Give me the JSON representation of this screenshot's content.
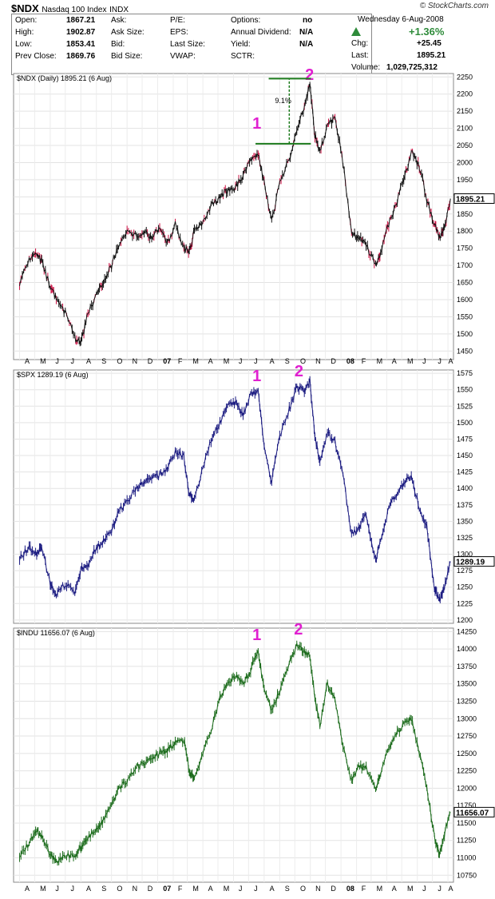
{
  "header": {
    "symbol": "$NDX",
    "name": "Nasdaq 100 Index",
    "exchange": "INDX",
    "brand": "© StockCharts.com",
    "date": "Wednesday  6-Aug-2008",
    "fields": [
      {
        "label": "Open:",
        "value": "1867.21"
      },
      {
        "label": "High:",
        "value": "1902.87"
      },
      {
        "label": "Low:",
        "value": "1853.41"
      },
      {
        "label": "Prev Close:",
        "value": "1869.76"
      }
    ],
    "fields2": [
      {
        "label": "Ask:",
        "value": ""
      },
      {
        "label": "Ask Size:",
        "value": ""
      },
      {
        "label": "Bid:",
        "value": ""
      },
      {
        "label": "Bid Size:",
        "value": ""
      }
    ],
    "fields3": [
      {
        "label": "P/E:",
        "value": ""
      },
      {
        "label": "EPS:",
        "value": ""
      },
      {
        "label": "Last Size:",
        "value": ""
      },
      {
        "label": "VWAP:",
        "value": ""
      }
    ],
    "fields4": [
      {
        "label": "Options:",
        "value": "no"
      },
      {
        "label": "Annual Dividend:",
        "value": "N/A"
      },
      {
        "label": "Yield:",
        "value": "N/A"
      },
      {
        "label": "SCTR:",
        "value": ""
      }
    ],
    "pct_change": "+1.36%",
    "chg_label": "Chg:",
    "chg": "+25.45",
    "last_label": "Last:",
    "last": "1895.21",
    "volume_label": "Volume:",
    "volume": "1,029,725,312"
  },
  "chart_data": [
    {
      "type": "line",
      "title": "$NDX (Daily) 1895.21 (6 Aug)",
      "color": "#111111",
      "down_color": "#cc1144",
      "ylim": [
        1425,
        2260
      ],
      "yticks": [
        1450,
        1500,
        1550,
        1600,
        1650,
        1700,
        1750,
        1800,
        1850,
        1900,
        1950,
        2000,
        2050,
        2100,
        2150,
        2200,
        2250
      ],
      "last_value": "1895.21",
      "x": [
        "2006-04-01",
        "2006-04-20",
        "2006-05-05",
        "2006-05-15",
        "2006-06-01",
        "2006-06-13",
        "2006-07-01",
        "2006-07-20",
        "2006-08-01",
        "2006-08-15",
        "2006-09-01",
        "2006-09-15",
        "2006-10-01",
        "2006-10-15",
        "2006-11-01",
        "2006-11-20",
        "2006-12-05",
        "2006-12-20",
        "2007-01-05",
        "2007-01-20",
        "2007-02-05",
        "2007-02-22",
        "2007-03-05",
        "2007-03-15",
        "2007-04-01",
        "2007-04-20",
        "2007-05-05",
        "2007-05-20",
        "2007-06-05",
        "2007-06-20",
        "2007-07-05",
        "2007-07-20",
        "2007-08-01",
        "2007-08-16",
        "2007-09-01",
        "2007-09-20",
        "2007-10-05",
        "2007-10-20",
        "2007-10-31",
        "2007-11-10",
        "2007-11-20",
        "2007-12-05",
        "2007-12-20",
        "2008-01-05",
        "2008-01-22",
        "2008-02-05",
        "2008-02-20",
        "2008-03-10",
        "2008-03-20",
        "2008-04-05",
        "2008-04-20",
        "2008-05-05",
        "2008-05-20",
        "2008-06-05",
        "2008-06-20",
        "2008-07-05",
        "2008-07-15",
        "2008-07-25",
        "2008-08-06"
      ],
      "values": [
        1650,
        1720,
        1740,
        1710,
        1640,
        1600,
        1560,
        1490,
        1470,
        1560,
        1610,
        1650,
        1700,
        1760,
        1800,
        1790,
        1800,
        1780,
        1810,
        1760,
        1820,
        1750,
        1740,
        1800,
        1830,
        1880,
        1900,
        1920,
        1930,
        1960,
        2010,
        2030,
        1940,
        1830,
        1940,
        2010,
        2100,
        2160,
        2230,
        2080,
        2030,
        2110,
        2130,
        2000,
        1800,
        1780,
        1760,
        1700,
        1740,
        1820,
        1880,
        1950,
        2030,
        1990,
        1890,
        1820,
        1780,
        1810,
        1895
      ],
      "annotations": [
        {
          "label": "1",
          "date": "2007-07-18",
          "value": 2090
        },
        {
          "label": "2",
          "date": "2007-10-31",
          "value": 2270
        }
      ],
      "percent_label": "9.1%",
      "xticks": [
        "A",
        "M",
        "J",
        "J",
        "A",
        "S",
        "O",
        "N",
        "D",
        "07",
        "F",
        "M",
        "A",
        "M",
        "J",
        "J",
        "A",
        "S",
        "O",
        "N",
        "D",
        "08",
        "F",
        "M",
        "A",
        "M",
        "J",
        "J",
        "A"
      ]
    },
    {
      "type": "line",
      "title": "$SPX 1289.19 (6 Aug)",
      "color": "#1a1a80",
      "ylim": [
        1195,
        1580
      ],
      "yticks": [
        1200,
        1225,
        1250,
        1275,
        1300,
        1325,
        1350,
        1375,
        1400,
        1425,
        1450,
        1475,
        1500,
        1525,
        1550,
        1575
      ],
      "last_value": "1289.19",
      "x": [
        "2006-04-01",
        "2006-04-20",
        "2006-05-05",
        "2006-05-15",
        "2006-06-01",
        "2006-06-13",
        "2006-07-01",
        "2006-07-20",
        "2006-08-01",
        "2006-08-15",
        "2006-09-01",
        "2006-09-15",
        "2006-10-01",
        "2006-10-15",
        "2006-11-01",
        "2006-11-20",
        "2006-12-05",
        "2006-12-20",
        "2007-01-05",
        "2007-01-20",
        "2007-02-05",
        "2007-02-22",
        "2007-03-05",
        "2007-03-15",
        "2007-04-01",
        "2007-04-20",
        "2007-05-05",
        "2007-05-20",
        "2007-06-05",
        "2007-06-20",
        "2007-07-05",
        "2007-07-20",
        "2007-08-01",
        "2007-08-16",
        "2007-09-01",
        "2007-09-20",
        "2007-10-05",
        "2007-10-20",
        "2007-10-31",
        "2007-11-10",
        "2007-11-20",
        "2007-12-05",
        "2007-12-20",
        "2008-01-05",
        "2008-01-22",
        "2008-02-05",
        "2008-02-20",
        "2008-03-10",
        "2008-03-20",
        "2008-04-05",
        "2008-04-20",
        "2008-05-05",
        "2008-05-20",
        "2008-06-05",
        "2008-06-20",
        "2008-07-05",
        "2008-07-15",
        "2008-07-25",
        "2008-08-06"
      ],
      "values": [
        1295,
        1310,
        1300,
        1310,
        1255,
        1240,
        1255,
        1240,
        1275,
        1285,
        1310,
        1320,
        1335,
        1365,
        1380,
        1400,
        1410,
        1415,
        1420,
        1430,
        1455,
        1450,
        1390,
        1385,
        1430,
        1480,
        1500,
        1525,
        1530,
        1510,
        1545,
        1550,
        1460,
        1410,
        1480,
        1520,
        1555,
        1545,
        1565,
        1480,
        1440,
        1485,
        1470,
        1420,
        1330,
        1340,
        1360,
        1290,
        1320,
        1370,
        1390,
        1410,
        1420,
        1370,
        1340,
        1250,
        1230,
        1250,
        1289
      ],
      "annotations": [
        {
          "label": "1",
          "date": "2007-07-18",
          "value": 1558
        },
        {
          "label": "2",
          "date": "2007-10-10",
          "value": 1576
        }
      ],
      "xticks": []
    },
    {
      "type": "line",
      "title": "$INDU 11656.07 (6 Aug)",
      "color": "#1b6b1b",
      "ylim": [
        10650,
        14300
      ],
      "yticks": [
        10750,
        11000,
        11250,
        11500,
        11750,
        12000,
        12250,
        12500,
        12750,
        13000,
        13250,
        13500,
        13750,
        14000,
        14250
      ],
      "last_value": "11656.07",
      "x": [
        "2006-04-01",
        "2006-04-20",
        "2006-05-05",
        "2006-05-15",
        "2006-06-01",
        "2006-06-13",
        "2006-07-01",
        "2006-07-20",
        "2006-08-01",
        "2006-08-15",
        "2006-09-01",
        "2006-09-15",
        "2006-10-01",
        "2006-10-15",
        "2006-11-01",
        "2006-11-20",
        "2006-12-05",
        "2006-12-20",
        "2007-01-05",
        "2007-01-20",
        "2007-02-05",
        "2007-02-22",
        "2007-03-05",
        "2007-03-15",
        "2007-04-01",
        "2007-04-20",
        "2007-05-05",
        "2007-05-20",
        "2007-06-05",
        "2007-06-20",
        "2007-07-05",
        "2007-07-20",
        "2007-08-01",
        "2007-08-16",
        "2007-09-01",
        "2007-09-20",
        "2007-10-05",
        "2007-10-20",
        "2007-10-31",
        "2007-11-10",
        "2007-11-20",
        "2007-12-05",
        "2007-12-20",
        "2008-01-05",
        "2008-01-22",
        "2008-02-05",
        "2008-02-20",
        "2008-03-10",
        "2008-03-20",
        "2008-04-05",
        "2008-04-20",
        "2008-05-05",
        "2008-05-20",
        "2008-06-05",
        "2008-06-20",
        "2008-07-05",
        "2008-07-15",
        "2008-07-25",
        "2008-08-06"
      ],
      "values": [
        11050,
        11200,
        11400,
        11300,
        11050,
        10950,
        11050,
        11000,
        11150,
        11300,
        11400,
        11550,
        11750,
        12000,
        12100,
        12300,
        12350,
        12450,
        12500,
        12550,
        12650,
        12700,
        12250,
        12150,
        12500,
        12900,
        13300,
        13500,
        13600,
        13500,
        13700,
        14000,
        13400,
        13100,
        13400,
        13800,
        14050,
        13950,
        13900,
        13300,
        12900,
        13500,
        13300,
        12600,
        12100,
        12300,
        12300,
        12000,
        12200,
        12600,
        12800,
        12900,
        13000,
        12500,
        12000,
        11300,
        11050,
        11350,
        11656
      ],
      "annotations": [
        {
          "label": "1",
          "date": "2007-07-18",
          "value": 14080
        },
        {
          "label": "2",
          "date": "2007-10-09",
          "value": 14220
        }
      ],
      "xticks": [
        "A",
        "M",
        "J",
        "J",
        "A",
        "S",
        "O",
        "N",
        "D",
        "07",
        "F",
        "M",
        "A",
        "M",
        "J",
        "J",
        "A",
        "S",
        "O",
        "N",
        "D",
        "08",
        "F",
        "M",
        "A",
        "M",
        "J",
        "J",
        "A"
      ]
    }
  ]
}
